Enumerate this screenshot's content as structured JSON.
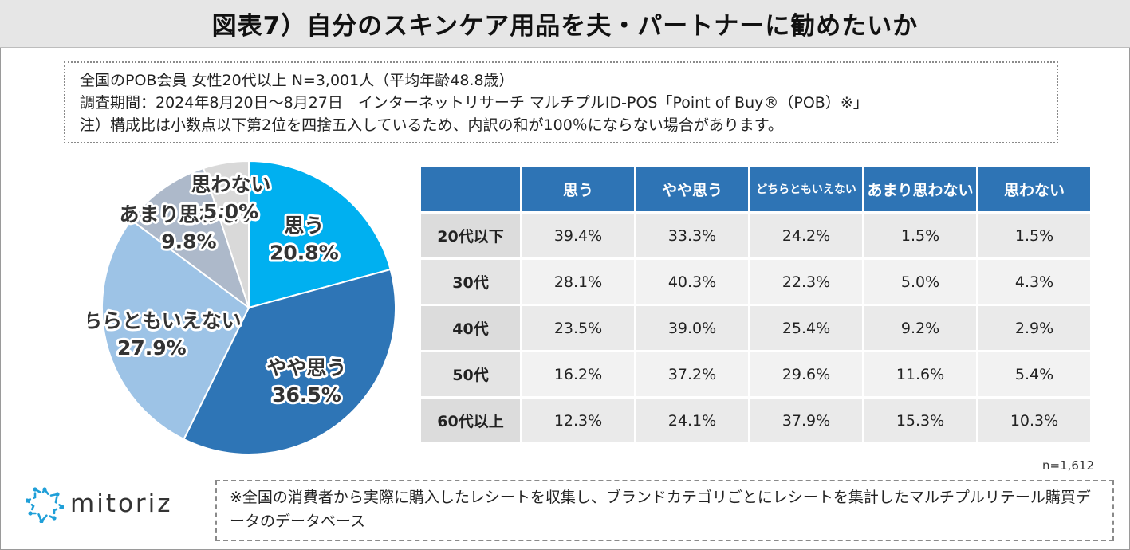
{
  "title": "図表7）自分のスキンケア用品を夫・パートナーに勧めたいか",
  "notes": [
    "全国のPOB会員 女性20代以上 N=3,001人（平均年齢48.8歳）",
    "調査期間：2024年8月20日～8月27日　インターネットリサーチ マルチプルID-POS「Point of Buy®（POB）※」",
    "注）構成比は小数点以下第2位を四捨五入しているため、内訳の和が100％にならない場合があります。"
  ],
  "colors": {
    "omou": "#00b0f0",
    "yaya": "#2e75b6",
    "dochira": "#9dc3e6",
    "amari": "#adb9ca",
    "omowanai": "#d9d9d9",
    "header": "#2e74b5"
  },
  "chart_data": [
    {
      "type": "pie",
      "slices": [
        {
          "label": "思う",
          "value": 20.8,
          "value_label": "20.8%",
          "color": "#00b0f0"
        },
        {
          "label": "やや思う",
          "value": 36.5,
          "value_label": "36.5%",
          "color": "#2e75b6"
        },
        {
          "label": "どちらともいえない",
          "value": 27.9,
          "value_label": "27.9%",
          "color": "#9dc3e6"
        },
        {
          "label": "あまり思わない",
          "value": 9.8,
          "value_label": "9.8%",
          "color": "#adb9ca"
        },
        {
          "label": "思わない",
          "value": 5.0,
          "value_label": "5.0%",
          "color": "#d9d9d9"
        }
      ]
    },
    {
      "type": "table",
      "columns": [
        "思う",
        "やや思う",
        "どちらともいえない",
        "あまり思わない",
        "思わない"
      ],
      "rows": [
        {
          "label": "20代以下",
          "values": [
            "39.4%",
            "33.3%",
            "24.2%",
            "1.5%",
            "1.5%"
          ]
        },
        {
          "label": "30代",
          "values": [
            "28.1%",
            "40.3%",
            "22.3%",
            "5.0%",
            "4.3%"
          ]
        },
        {
          "label": "40代",
          "values": [
            "23.5%",
            "39.0%",
            "25.4%",
            "9.2%",
            "2.9%"
          ]
        },
        {
          "label": "50代",
          "values": [
            "16.2%",
            "37.2%",
            "29.6%",
            "11.6%",
            "5.4%"
          ]
        },
        {
          "label": "60代以上",
          "values": [
            "12.3%",
            "24.1%",
            "37.9%",
            "15.3%",
            "10.3%"
          ]
        }
      ],
      "n_label": "n=1,612"
    }
  ],
  "logo": {
    "text": "mitoriz",
    "icon": "mitoriz-logo-icon"
  },
  "footnote": "※全国の消費者から実際に購入したレシートを収集し、ブランドカテゴリごとにレシートを集計したマルチプルリテール購買データのデータベース"
}
